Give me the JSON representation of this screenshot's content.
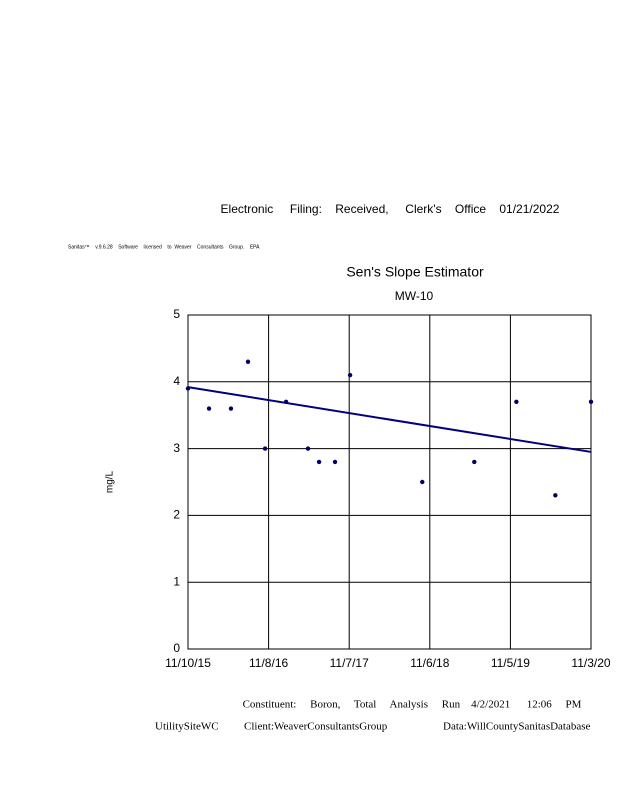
{
  "header": {
    "filing": "Electronic     Filing:    Received,     Clerk's    Office    01/21/2022",
    "software": "Sanitas™    v.9.6.28    Software    licensed    to  Weaver    Consultants    Group.    EPA"
  },
  "chart_data": {
    "type": "scatter",
    "title": "Sen's Slope Estimator",
    "subtitle": "MW-10",
    "ylabel": "mg/L",
    "x": [
      "2015-11-10",
      "2016-02-13",
      "2016-05-22",
      "2016-08-07",
      "2016-10-23",
      "2017-01-26",
      "2017-05-05",
      "2017-06-24",
      "2017-09-04",
      "2017-11-11",
      "2018-10-03",
      "2019-05-26",
      "2019-12-02",
      "2020-05-26",
      "2020-11-03"
    ],
    "values": [
      3.9,
      3.6,
      3.6,
      4.3,
      3.0,
      3.7,
      3.0,
      2.8,
      2.8,
      4.1,
      2.5,
      2.8,
      3.7,
      2.3,
      3.7
    ],
    "color": "#000066",
    "trend": {
      "x": [
        "2015-11-10",
        "2020-11-03"
      ],
      "values": [
        3.92,
        2.95
      ],
      "color": "#000080"
    },
    "xlim": [
      "2015-11-10",
      "2020-11-03"
    ],
    "xticks": [
      {
        "value": "2015-11-10",
        "label": "11/10/15"
      },
      {
        "value": "2016-11-08",
        "label": "11/8/16"
      },
      {
        "value": "2017-11-07",
        "label": "11/7/17"
      },
      {
        "value": "2018-11-06",
        "label": "11/6/18"
      },
      {
        "value": "2019-11-05",
        "label": "11/5/19"
      },
      {
        "value": "2020-11-03",
        "label": "11/3/20"
      }
    ],
    "ylim": [
      0,
      5
    ],
    "yticks": [
      0,
      1,
      2,
      3,
      4,
      5
    ],
    "grid": true
  },
  "footer": {
    "constituent": "Constituent:     Boron,     Total     Analysis     Run    4/2/2021      12:06     PM",
    "site": "UtilitySiteWC",
    "client": "Client:WeaverConsultantsGroup",
    "data": "Data:WillCountySanitasDatabase"
  }
}
